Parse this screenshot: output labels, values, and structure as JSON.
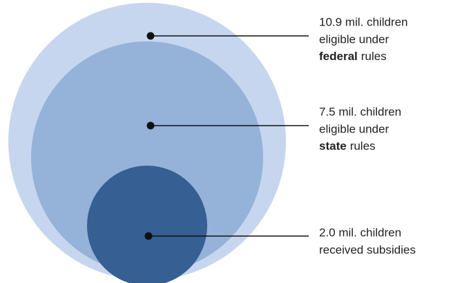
{
  "nodes": [
    {
      "lines": [
        "10.9 mil. children",
        "eligible under"
      ],
      "emphasis": "federal",
      "after": "rules"
    },
    {
      "lines": [
        "7.5 mil. children",
        "eligible under"
      ],
      "emphasis": "state",
      "after": "rules"
    },
    {
      "lines": [
        "2.0 mil. children",
        "received subsidies"
      ]
    }
  ]
}
